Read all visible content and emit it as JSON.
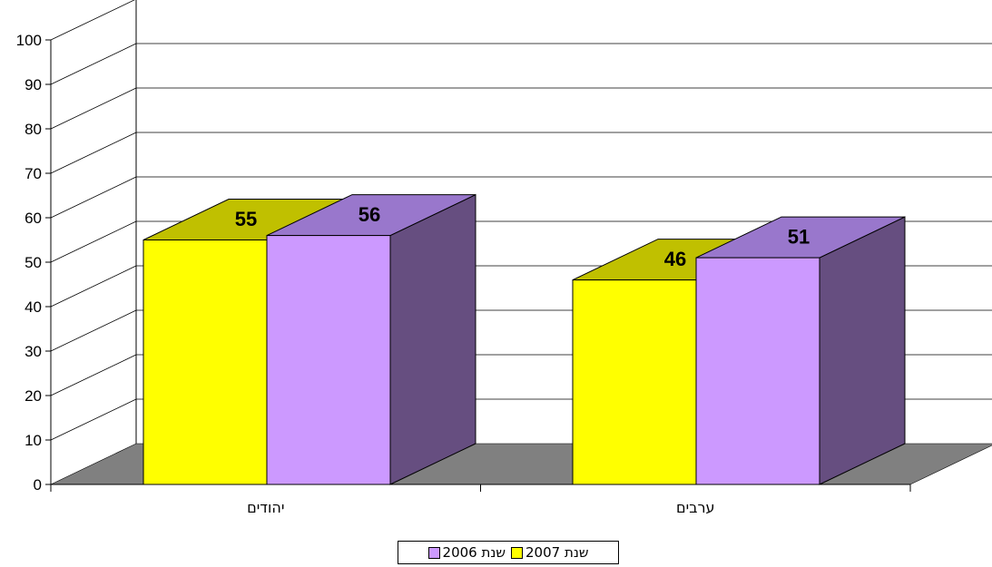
{
  "chart_data": {
    "type": "bar",
    "categories": [
      "יהודים",
      "ערבים"
    ],
    "series": [
      {
        "name": "שנת 2007",
        "values": [
          55,
          46
        ],
        "color": "#FFFF00",
        "top_color": "#C0C000"
      },
      {
        "name": "שנת 2006",
        "values": [
          56,
          51
        ],
        "color": "#CC99FF",
        "top_color": "#9977CC",
        "side_color": "#664E80"
      }
    ],
    "ylim": [
      0,
      100
    ],
    "yticks": [
      "0",
      "10",
      "20",
      "30",
      "40",
      "50",
      "60",
      "70",
      "80",
      "90",
      "100"
    ],
    "grid": true,
    "floor_color": "#808080",
    "legend_position": "bottom"
  }
}
